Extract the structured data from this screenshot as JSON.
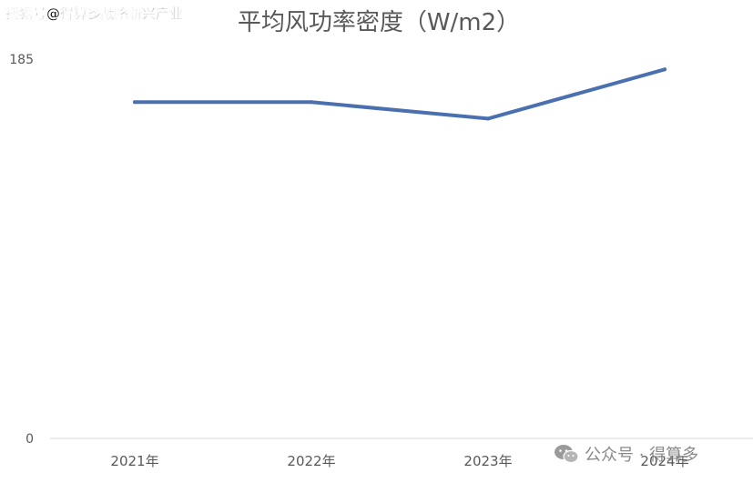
{
  "watermark": {
    "top": "搜狐号@得算多战略新兴产业",
    "bottom": "公众号 · 得算多",
    "icon": "wechat-icon"
  },
  "chart_data": {
    "type": "line",
    "title": "平均风功率密度（W/m2）",
    "categories": [
      "2021年",
      "2022年",
      "2023年",
      "2024年"
    ],
    "series": [
      {
        "values": [
          164,
          164,
          156,
          180
        ]
      }
    ],
    "ylim": [
      0,
      185
    ],
    "y_ticks": [
      "0",
      "185"
    ],
    "xlabel": "",
    "ylabel": "",
    "grid": false,
    "line_color": "#4a70b0",
    "axis_color": "#d9d9d9"
  }
}
